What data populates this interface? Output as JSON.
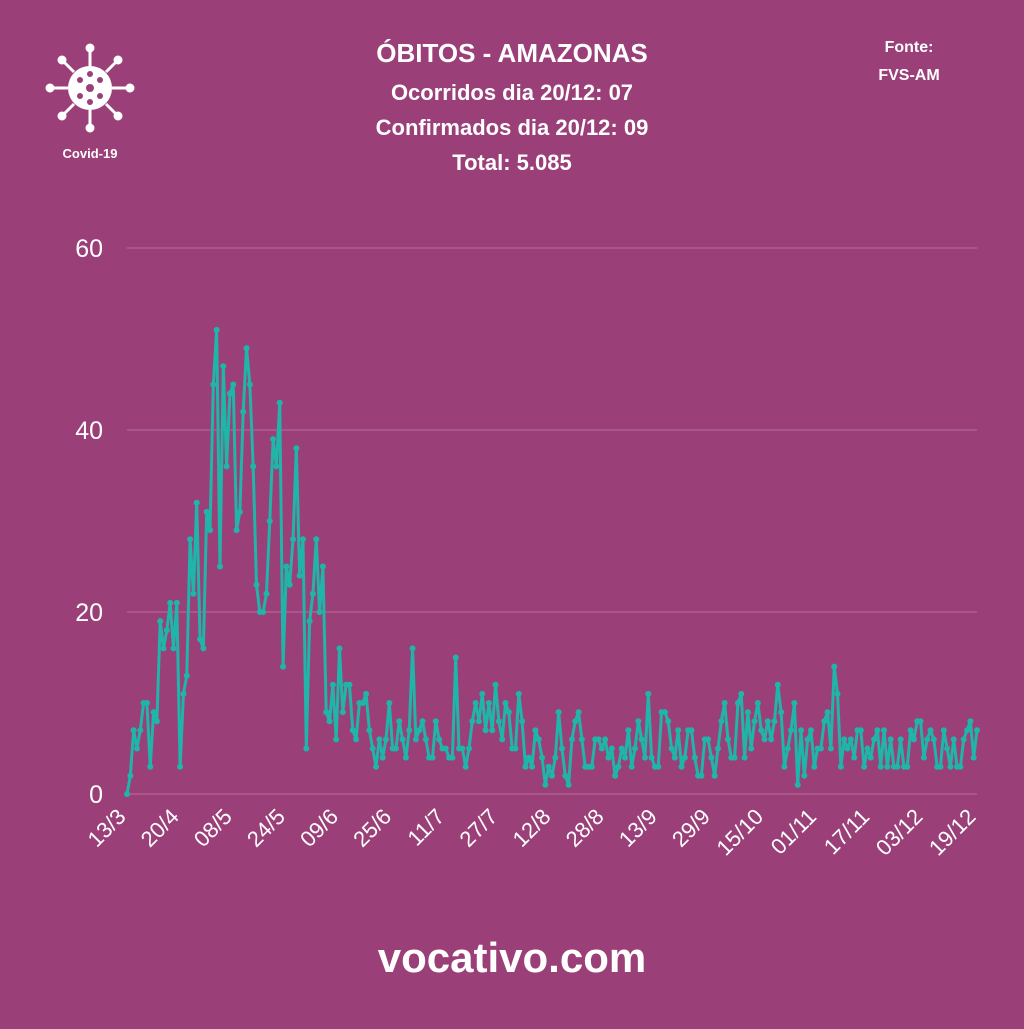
{
  "chart_data": {
    "type": "line",
    "title": "ÓBITOS - AMAZONAS",
    "subtitle_lines": [
      "Ocorridos dia 20/12: 07",
      "Confirmados dia 20/12: 09",
      "Total: 5.085"
    ],
    "icon_label": "Covid-19",
    "source_label": "Fonte:",
    "source": "FVS-AM",
    "footer": "vocativo.com",
    "color": "#1fb5a8",
    "grid": true,
    "ylim": [
      0,
      60
    ],
    "yticks": [
      0,
      20,
      40,
      60
    ],
    "categories": [
      "13/3",
      null,
      null,
      null,
      null,
      null,
      null,
      null,
      null,
      null,
      null,
      null,
      null,
      null,
      null,
      null,
      "20/4",
      null,
      null,
      null,
      null,
      null,
      null,
      null,
      null,
      null,
      null,
      null,
      null,
      null,
      null,
      null,
      "08/5",
      null,
      null,
      null,
      null,
      null,
      null,
      null,
      null,
      null,
      null,
      null,
      null,
      null,
      null,
      null,
      "24/5",
      null,
      null,
      null,
      null,
      null,
      null,
      null,
      null,
      null,
      null,
      null,
      null,
      null,
      null,
      null,
      "09/6",
      null,
      null,
      null,
      null,
      null,
      null,
      null,
      null,
      null,
      null,
      null,
      null,
      null,
      null,
      null,
      "25/6",
      null,
      null,
      null,
      null,
      null,
      null,
      null,
      null,
      null,
      null,
      null,
      null,
      null,
      null,
      null,
      "11/7",
      null,
      null,
      null,
      null,
      null,
      null,
      null,
      null,
      null,
      null,
      null,
      null,
      null,
      null,
      null,
      "27/7",
      null,
      null,
      null,
      null,
      null,
      null,
      null,
      null,
      null,
      null,
      null,
      null,
      null,
      null,
      null,
      "12/8",
      null,
      null,
      null,
      null,
      null,
      null,
      null,
      null,
      null,
      null,
      null,
      null,
      null,
      null,
      null,
      "28/8",
      null,
      null,
      null,
      null,
      null,
      null,
      null,
      null,
      null,
      null,
      null,
      null,
      null,
      null,
      null,
      "13/9",
      null,
      null,
      null,
      null,
      null,
      null,
      null,
      null,
      null,
      null,
      null,
      null,
      null,
      null,
      null,
      "29/9",
      null,
      null,
      null,
      null,
      null,
      null,
      null,
      null,
      null,
      null,
      null,
      null,
      null,
      null,
      null,
      "15/10",
      null,
      null,
      null,
      null,
      null,
      null,
      null,
      null,
      null,
      null,
      null,
      null,
      null,
      null,
      null,
      "01/11",
      null,
      null,
      null,
      null,
      null,
      null,
      null,
      null,
      null,
      null,
      null,
      null,
      null,
      null,
      null,
      "17/11",
      null,
      null,
      null,
      null,
      null,
      null,
      null,
      null,
      null,
      null,
      null,
      null,
      null,
      null,
      null,
      "03/12",
      null,
      null,
      null,
      null,
      null,
      null,
      null,
      null,
      null,
      null,
      null,
      null,
      null,
      null,
      null,
      "19/12"
    ],
    "values": [
      0,
      2,
      7,
      5,
      7,
      10,
      10,
      3,
      9,
      8,
      19,
      16,
      18,
      21,
      16,
      21,
      3,
      11,
      13,
      28,
      22,
      32,
      17,
      16,
      31,
      29,
      45,
      51,
      25,
      47,
      36,
      44,
      45,
      29,
      31,
      42,
      49,
      45,
      36,
      23,
      20,
      20,
      22,
      30,
      39,
      36,
      43,
      14,
      25,
      23,
      28,
      38,
      24,
      28,
      5,
      19,
      22,
      28,
      20,
      25,
      9,
      8,
      12,
      6,
      16,
      9,
      12,
      12,
      7,
      6,
      10,
      10,
      11,
      7,
      5,
      3,
      6,
      4,
      6,
      10,
      5,
      5,
      8,
      6,
      4,
      7,
      16,
      6,
      7,
      8,
      6,
      4,
      4,
      8,
      6,
      5,
      5,
      4,
      4,
      15,
      5,
      5,
      3,
      5,
      8,
      10,
      8,
      11,
      7,
      10,
      7,
      12,
      8,
      6,
      10,
      9,
      5,
      5,
      11,
      8,
      3,
      4,
      3,
      7,
      6,
      4,
      1,
      3,
      2,
      4,
      9,
      5,
      2,
      1,
      6,
      8,
      9,
      6,
      3,
      3,
      3,
      6,
      6,
      5,
      6,
      4,
      5,
      2,
      3,
      5,
      4,
      7,
      3,
      5,
      8,
      6,
      4,
      11,
      4,
      3,
      3,
      9,
      9,
      8,
      5,
      4,
      7,
      3,
      4,
      7,
      7,
      4,
      2,
      2,
      6,
      6,
      4,
      2,
      5,
      8,
      10,
      6,
      4,
      4,
      10,
      11,
      4,
      9,
      5,
      8,
      10,
      7,
      6,
      8,
      6,
      8,
      12,
      9,
      3,
      5,
      7,
      10,
      1,
      7,
      2,
      6,
      7,
      3,
      5,
      5,
      8,
      9,
      5,
      14,
      11,
      3,
      6,
      5,
      6,
      4,
      7,
      7,
      3,
      5,
      4,
      6,
      7,
      3,
      7,
      3,
      6,
      3,
      3,
      6,
      3,
      3,
      7,
      6,
      8,
      8,
      4,
      6,
      7,
      6,
      3,
      3,
      7,
      5,
      3,
      6,
      3,
      3,
      6,
      7,
      8,
      4,
      7
    ]
  }
}
